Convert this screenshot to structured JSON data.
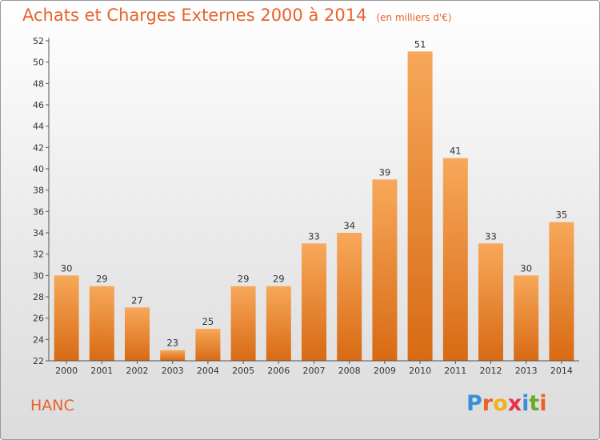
{
  "header": {
    "title": "Achats et Charges Externes 2000 à 2014",
    "subtitle": "(en milliers d'€)"
  },
  "footer": {
    "commune": "HANC",
    "logo_text": "Proxiti",
    "logo_letters": [
      {
        "ch": "P",
        "color": "#3a8fd6"
      },
      {
        "ch": "r",
        "color": "#e8622a"
      },
      {
        "ch": "o",
        "color": "#f0b020"
      },
      {
        "ch": "x",
        "color": "#e83050"
      },
      {
        "ch": "i",
        "color": "#3a8fd6"
      },
      {
        "ch": "t",
        "color": "#6aaa2a"
      },
      {
        "ch": "i",
        "color": "#e8622a"
      }
    ]
  },
  "chart_data": {
    "type": "bar",
    "title": "Achats et Charges Externes 2000 à 2014",
    "subtitle": "(en milliers d'€)",
    "categories": [
      "2000",
      "2001",
      "2002",
      "2003",
      "2004",
      "2005",
      "2006",
      "2007",
      "2008",
      "2009",
      "2010",
      "2011",
      "2012",
      "2013",
      "2014"
    ],
    "values": [
      30,
      29,
      27,
      23,
      25,
      29,
      29,
      33,
      34,
      39,
      51,
      41,
      33,
      30,
      35
    ],
    "ylim": [
      22,
      52
    ],
    "yticks": [
      22,
      24,
      26,
      28,
      30,
      32,
      34,
      36,
      38,
      40,
      42,
      44,
      46,
      48,
      50,
      52
    ],
    "grid": false,
    "bar_color": "#f0923a",
    "bar_color_light": "#f7a85a",
    "bar_color_dark": "#d86a14"
  }
}
